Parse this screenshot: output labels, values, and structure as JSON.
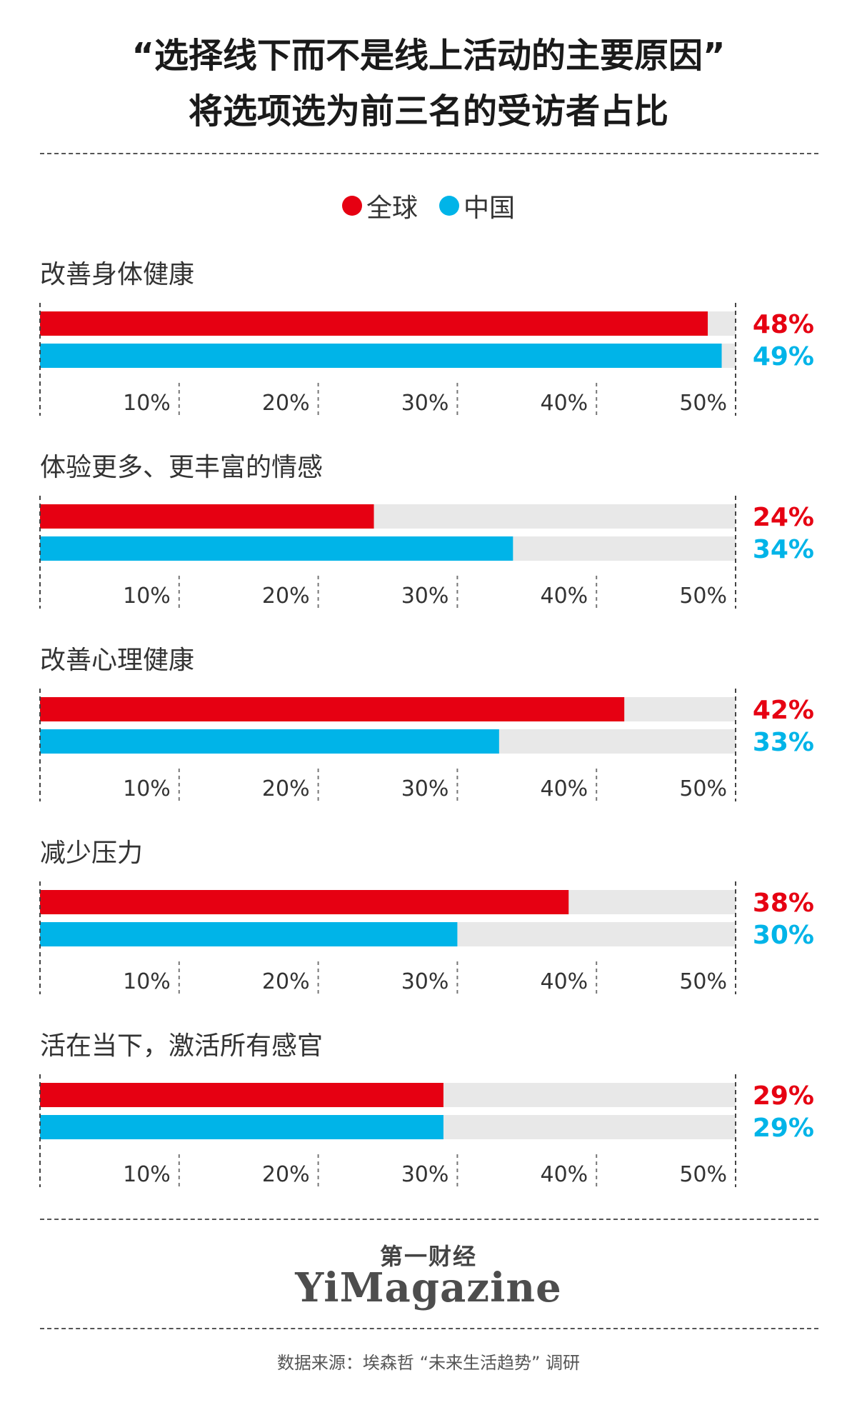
{
  "title_line1": "“选择线下而不是线上活动的主要原因”",
  "title_line2": "将选项选为前三名的受访者占比",
  "legend": [
    {
      "label": "全球",
      "color": "#e60012"
    },
    {
      "label": "中国",
      "color": "#00b4e8"
    }
  ],
  "footer": {
    "brand_cn": "第一财经",
    "brand_en": "YiMagazine",
    "source": "数据来源：埃森哲 “未来生活趋势” 调研"
  },
  "chart_data": {
    "type": "bar",
    "orientation": "horizontal",
    "xlim": [
      0,
      50
    ],
    "ticks": [
      10,
      20,
      30,
      40,
      50
    ],
    "tick_labels": [
      "10%",
      "20%",
      "30%",
      "40%",
      "50%"
    ],
    "track_color": "#e8e8e8",
    "categories": [
      "改善身体健康",
      "体验更多、更丰富的情感",
      "改善心理健康",
      "减少压力",
      "活在当下，激活所有感官"
    ],
    "series": [
      {
        "name": "全球",
        "color": "#e60012",
        "values": [
          48,
          24,
          42,
          38,
          29
        ],
        "labels": [
          "48%",
          "24%",
          "42%",
          "38%",
          "29%"
        ]
      },
      {
        "name": "中国",
        "color": "#00b4e8",
        "values": [
          49,
          34,
          33,
          30,
          29
        ],
        "labels": [
          "49%",
          "34%",
          "33%",
          "30%",
          "29%"
        ]
      }
    ]
  }
}
